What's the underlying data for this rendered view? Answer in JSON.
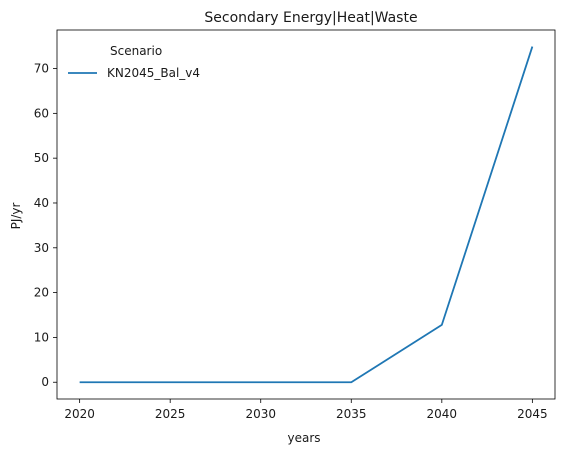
{
  "chart_data": {
    "type": "line",
    "title": "Secondary Energy|Heat|Waste",
    "xlabel": "years",
    "ylabel": "PJ/yr",
    "x": [
      2020,
      2025,
      2030,
      2035,
      2040,
      2045
    ],
    "xticks": [
      2020,
      2025,
      2030,
      2035,
      2040,
      2045
    ],
    "yticks": [
      0,
      10,
      20,
      30,
      40,
      50,
      60,
      70
    ],
    "xlim": [
      2018.75,
      2046.25
    ],
    "ylim": [
      -3.74,
      78.6
    ],
    "grid": false,
    "legend": {
      "title": "Scenario",
      "placement": "top-left"
    },
    "series": [
      {
        "name": "KN2045_Bal_v4",
        "color": "#1f77b4",
        "values": [
          0,
          0,
          0,
          0,
          12.8,
          74.9
        ]
      }
    ]
  }
}
